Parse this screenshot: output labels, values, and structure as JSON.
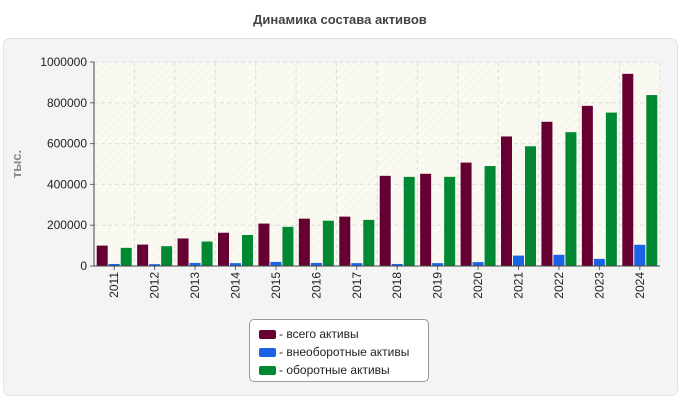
{
  "chart_data": {
    "type": "bar",
    "title": "Динамика состава активов",
    "ylabel": "тыс.",
    "xlabel": "",
    "ylim": [
      0,
      1000000
    ],
    "yticks": [
      0,
      200000,
      400000,
      600000,
      800000,
      1000000
    ],
    "grid": true,
    "legend_position": "bottom",
    "categories": [
      "2011",
      "2012",
      "2013",
      "2014",
      "2015",
      "2016",
      "2017",
      "2018",
      "2019",
      "2020",
      "2021",
      "2022",
      "2023",
      "2024"
    ],
    "series": [
      {
        "name": "всего активы",
        "color": "#660033",
        "values": [
          100000,
          105000,
          135000,
          163000,
          208000,
          232000,
          242000,
          442000,
          452000,
          507000,
          635000,
          707000,
          785000,
          942000
        ]
      },
      {
        "name": "внеоборотные активы",
        "color": "#1a63e6",
        "values": [
          10000,
          9000,
          15000,
          14000,
          20000,
          15000,
          14000,
          10000,
          14000,
          19000,
          51000,
          55000,
          35000,
          104000
        ]
      },
      {
        "name": "оборотные активы",
        "color": "#008833",
        "values": [
          89000,
          97000,
          120000,
          152000,
          192000,
          222000,
          226000,
          437000,
          437000,
          490000,
          587000,
          656000,
          752000,
          838000
        ]
      }
    ]
  }
}
